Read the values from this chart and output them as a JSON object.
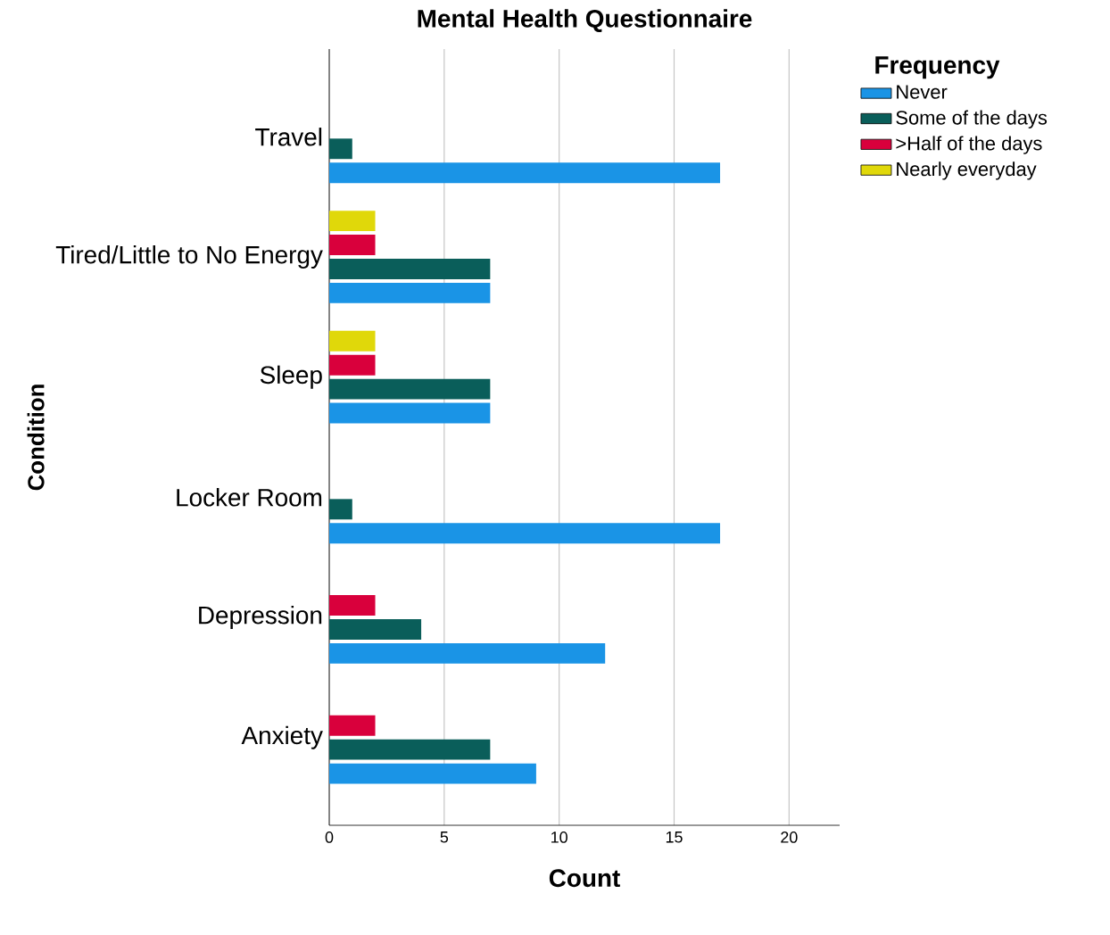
{
  "chart_data": {
    "type": "bar",
    "orientation": "horizontal",
    "title": "Mental Health Questionnaire",
    "xlabel": "Count",
    "ylabel": "Condition",
    "legend_title": "Frequency",
    "categories": [
      "Travel",
      "Tired/Little to No Energy",
      "Sleep",
      "Locker Room",
      "Depression",
      "Anxiety"
    ],
    "series": [
      {
        "name": "Never",
        "color": "#1a94e6",
        "values": [
          17,
          7,
          7,
          17,
          12,
          9
        ]
      },
      {
        "name": "Some of the days",
        "color": "#0a5e5a",
        "values": [
          1,
          7,
          7,
          1,
          4,
          7
        ]
      },
      {
        "name": ">Half of the days",
        "color": "#d9003c",
        "values": [
          null,
          2,
          2,
          null,
          2,
          2
        ]
      },
      {
        "name": "Nearly everyday",
        "color": "#e0d80a",
        "values": [
          null,
          2,
          2,
          null,
          null,
          null
        ]
      }
    ],
    "xlim": [
      0,
      22.2
    ],
    "xticks": [
      0,
      5,
      10,
      15,
      20
    ],
    "grid": "x",
    "legend": "top right"
  }
}
